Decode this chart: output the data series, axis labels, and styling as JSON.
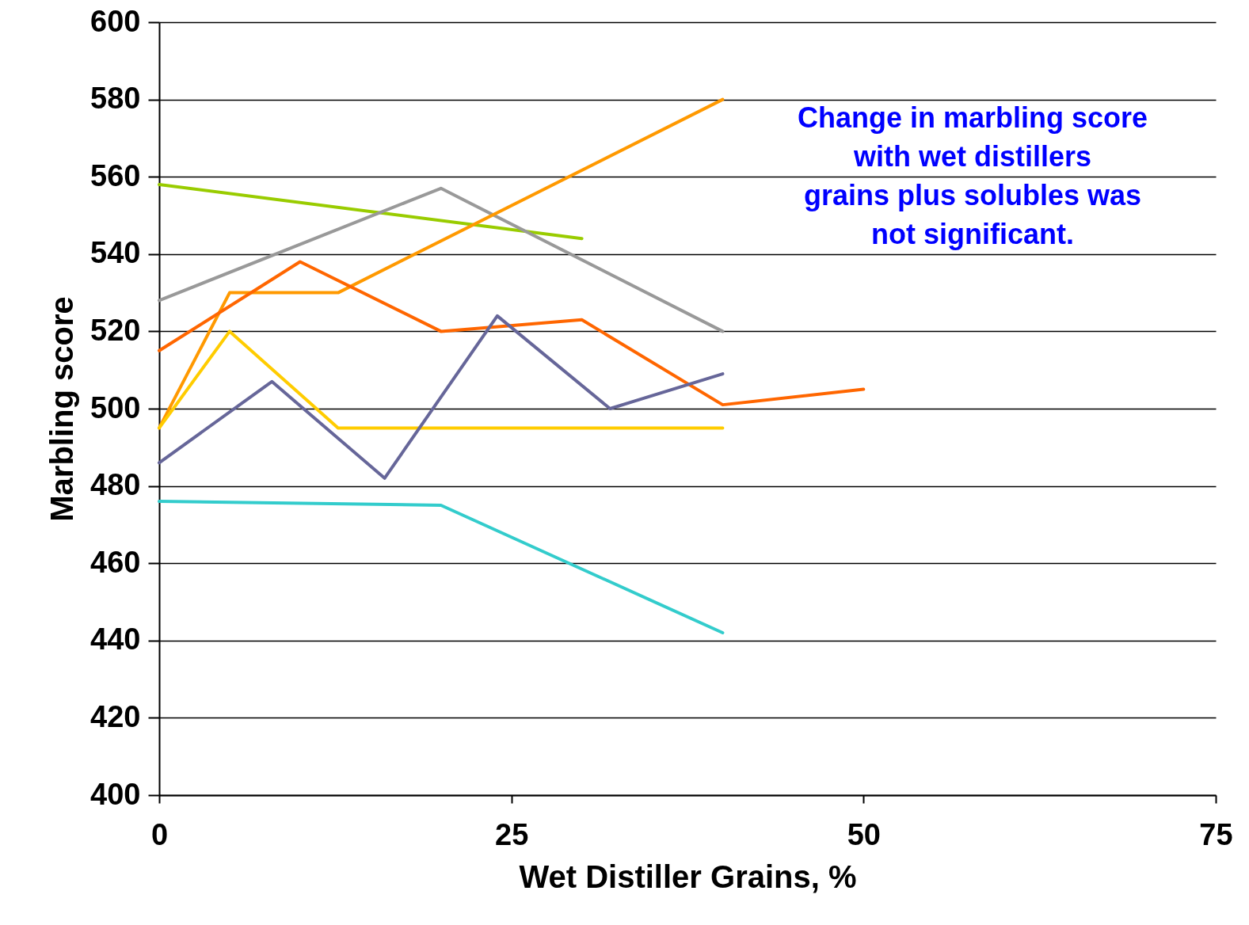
{
  "chart_data": {
    "type": "line",
    "xlabel": "Wet Distiller Grains, %",
    "ylabel": "Marbling score",
    "xlim": [
      0,
      75
    ],
    "xticks": [
      0,
      25,
      50,
      75
    ],
    "ylim": [
      400,
      600
    ],
    "yticks": [
      400,
      420,
      440,
      460,
      480,
      500,
      520,
      540,
      560,
      580,
      600
    ],
    "grid": "y",
    "legend": false,
    "line_style": "solid",
    "marker": "none",
    "series": [
      {
        "color": "#99cc00",
        "x": [
          0,
          30
        ],
        "values": [
          558,
          544
        ]
      },
      {
        "color": "#999999",
        "x": [
          0,
          20,
          40
        ],
        "values": [
          528,
          557,
          520
        ]
      },
      {
        "color": "#ff9900",
        "x": [
          0,
          5,
          12.7,
          40
        ],
        "values": [
          495,
          530,
          530,
          580
        ]
      },
      {
        "color": "#ff6600",
        "x": [
          0,
          10,
          20,
          30,
          40,
          50
        ],
        "values": [
          515,
          538,
          520,
          523,
          501,
          505
        ]
      },
      {
        "color": "#ffcc00",
        "x": [
          0,
          5,
          12.7,
          40
        ],
        "values": [
          495,
          520,
          495,
          495
        ]
      },
      {
        "color": "#666699",
        "x": [
          0,
          8,
          16,
          24,
          32,
          40
        ],
        "values": [
          486,
          507,
          482,
          524,
          500,
          509
        ]
      },
      {
        "color": "#33cccc",
        "x": [
          0,
          20,
          40
        ],
        "values": [
          476,
          475,
          442
        ]
      }
    ],
    "annotations": [
      "Change in marbling score with wet distillers grains plus solubles was not significant."
    ]
  }
}
